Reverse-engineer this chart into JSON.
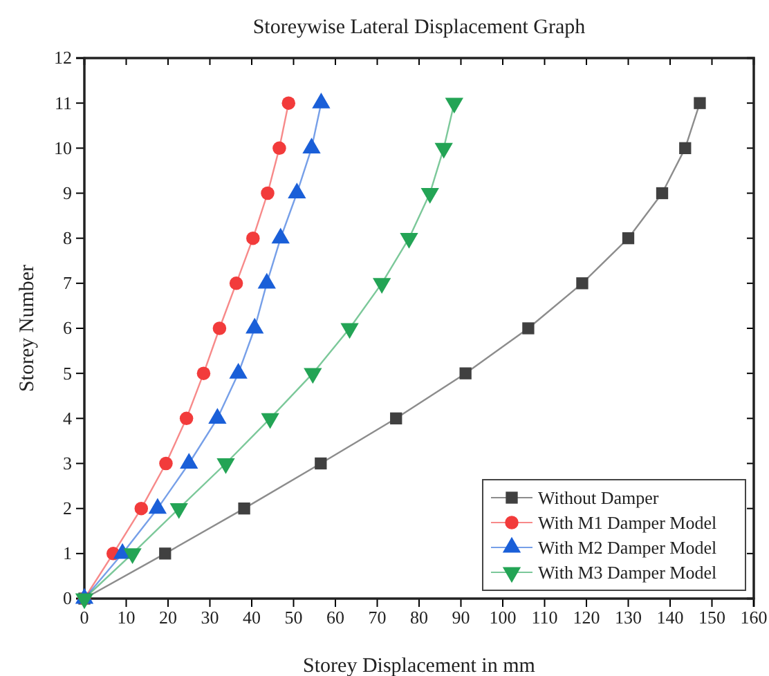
{
  "chart_data": {
    "type": "line",
    "title": "Storeywise Lateral Displacement Graph",
    "xlabel": "Storey Displacement in mm",
    "ylabel": "Storey Number",
    "xlim": [
      0,
      160
    ],
    "xticks": [
      0,
      10,
      20,
      30,
      40,
      50,
      60,
      70,
      80,
      90,
      100,
      110,
      120,
      130,
      140,
      150,
      160
    ],
    "ylim": [
      0,
      12
    ],
    "yticks": [
      0,
      1,
      2,
      3,
      4,
      5,
      6,
      7,
      8,
      9,
      10,
      11,
      12
    ],
    "grid": false,
    "legend": "bottom right",
    "series": [
      {
        "name": "Without Damper",
        "color": "#404040",
        "marker": "square",
        "x": [
          0,
          19.3,
          38.2,
          56.5,
          74.5,
          91.1,
          106.1,
          119,
          130,
          138.1,
          143.6,
          147.1
        ],
        "values": [
          0,
          1,
          2,
          3,
          4,
          5,
          6,
          7,
          8,
          9,
          10,
          11
        ]
      },
      {
        "name": "With M1 Damper Model",
        "color": "#f23b3b",
        "marker": "circle",
        "x": [
          0,
          6.9,
          13.6,
          19.5,
          24.4,
          28.5,
          32.3,
          36.3,
          40.3,
          43.8,
          46.6,
          48.8
        ],
        "values": [
          0,
          1,
          2,
          3,
          4,
          5,
          6,
          7,
          8,
          9,
          10,
          11
        ]
      },
      {
        "name": "With M2 Damper Model",
        "color": "#1a5fd8",
        "marker": "triangle",
        "x": [
          0,
          9.1,
          17.5,
          25,
          31.8,
          36.8,
          40.7,
          43.6,
          46.9,
          50.8,
          54.3,
          56.6
        ],
        "values": [
          0,
          1,
          2,
          3,
          4,
          5,
          6,
          7,
          8,
          9,
          10,
          11
        ]
      },
      {
        "name": "With M3 Damper Model",
        "color": "#23a455",
        "marker": "triangle-down",
        "x": [
          0,
          11.5,
          22.6,
          33.8,
          44.4,
          54.6,
          63.4,
          71.1,
          77.6,
          82.6,
          85.9,
          88.4
        ],
        "values": [
          0,
          1,
          2,
          3,
          4,
          5,
          6,
          7,
          8,
          9,
          10,
          11
        ]
      }
    ]
  }
}
